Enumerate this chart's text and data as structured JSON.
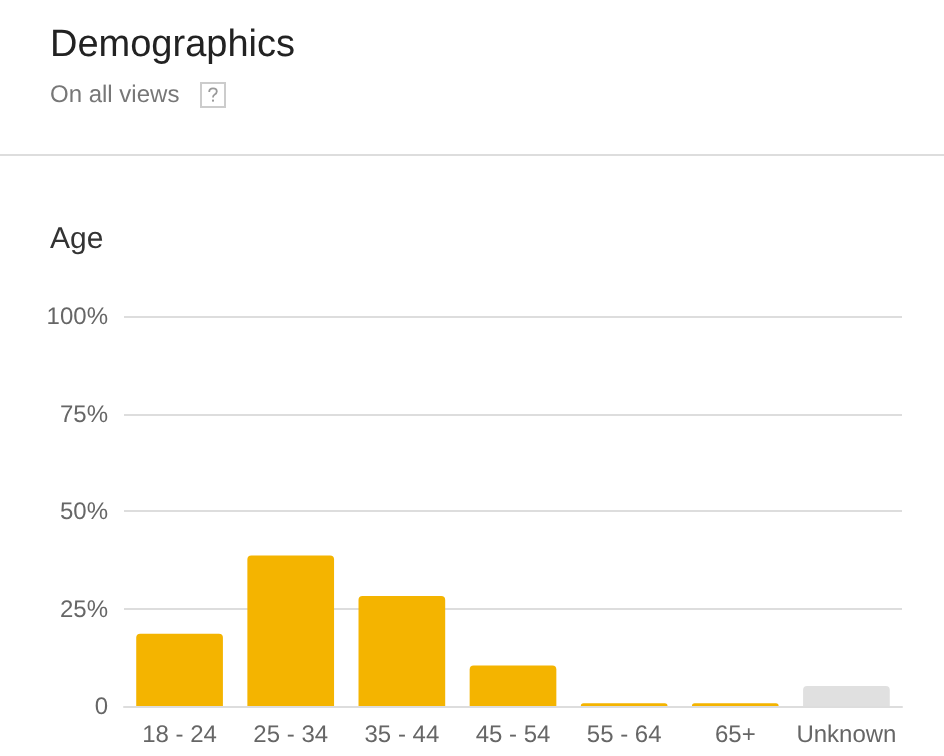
{
  "chart_data": {
    "type": "bar",
    "title": "Demographics",
    "subtitle": "On all views",
    "annotations": [
      "Age"
    ],
    "categories": [
      "18 - 24",
      "25 - 34",
      "35 - 44",
      "45 - 54",
      "55 - 64",
      "65+",
      "Unknown"
    ],
    "values": [
      18.5,
      38.6,
      28.2,
      10.4,
      0.7,
      0.7,
      5.1
    ],
    "colors": [
      "#f4b400",
      "#f4b400",
      "#f4b400",
      "#f4b400",
      "#f4b400",
      "#f4b400",
      "#e0e0e0"
    ],
    "ylim": [
      0,
      100
    ],
    "yticks": [
      0,
      {
        "value": 25,
        "label": "25%"
      },
      {
        "value": 50,
        "label": "50%"
      },
      {
        "value": 75,
        "label": "75%"
      },
      {
        "value": 100,
        "label": "100%"
      }
    ],
    "grid": "y"
  }
}
